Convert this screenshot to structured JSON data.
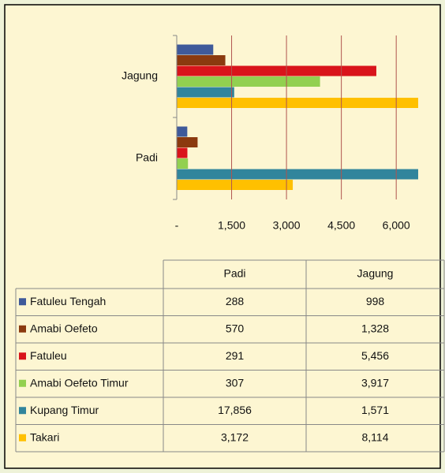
{
  "chart_data": {
    "type": "bar",
    "orientation": "horizontal",
    "categories": [
      "Padi",
      "Jagung"
    ],
    "series": [
      {
        "name": "Fatuleu Tengah",
        "color": "#3f5a9a",
        "values": [
          288,
          998
        ]
      },
      {
        "name": "Amabi Oefeto",
        "color": "#8b3a0f",
        "values": [
          570,
          1328
        ],
        "value_labels": [
          "570",
          "1,328"
        ]
      },
      {
        "name": "Fatuleu",
        "color": "#d9141b",
        "values": [
          291,
          5456
        ],
        "value_labels": [
          "291",
          "5,456"
        ]
      },
      {
        "name": "Amabi Oefeto Timur",
        "color": "#92d050",
        "values": [
          307,
          3917
        ],
        "value_labels": [
          "307",
          "3,917"
        ]
      },
      {
        "name": "Kupang Timur",
        "color": "#31859c",
        "values": [
          17856,
          1571
        ],
        "value_labels": [
          "17,856",
          "1,571"
        ]
      },
      {
        "name": "Takari",
        "color": "#ffc000",
        "values": [
          3172,
          8114
        ],
        "value_labels": [
          "3,172",
          "8,114"
        ]
      }
    ],
    "xlim": [
      0,
      6600
    ],
    "xticks": [
      {
        "value": 0,
        "label": "-"
      },
      {
        "value": 1500,
        "label": "1,500"
      },
      {
        "value": 3000,
        "label": "3,000"
      },
      {
        "value": 4500,
        "label": "4,500"
      },
      {
        "value": 6000,
        "label": "6,000"
      }
    ],
    "grid": true,
    "grid_color": "#b0544f"
  }
}
